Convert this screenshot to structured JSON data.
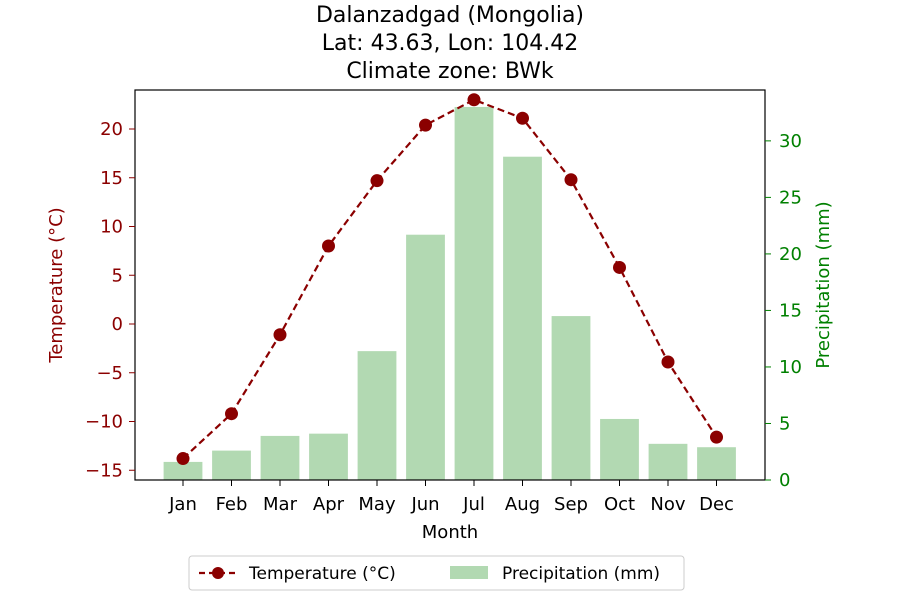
{
  "chart_data": {
    "type": "bar+line",
    "title_lines": [
      "Dalanzadgad (Mongolia)",
      "Lat: 43.63, Lon: 104.42",
      "Climate zone: BWk"
    ],
    "xlabel": "Month",
    "categories": [
      "Jan",
      "Feb",
      "Mar",
      "Apr",
      "May",
      "Jun",
      "Jul",
      "Aug",
      "Sep",
      "Oct",
      "Nov",
      "Dec"
    ],
    "series": [
      {
        "name": "Temperature (°C)",
        "kind": "line",
        "axis": "left",
        "color": "#8b0000",
        "style": "dashed-with-circle-markers",
        "values": [
          -13.8,
          -9.2,
          -1.1,
          8.0,
          14.7,
          20.4,
          23.0,
          21.1,
          14.8,
          5.8,
          -3.9,
          -11.6
        ]
      },
      {
        "name": "Precipitation (mm)",
        "kind": "bar",
        "axis": "right",
        "color": "#b2d9b2",
        "values": [
          1.6,
          2.6,
          3.9,
          4.1,
          11.4,
          21.7,
          33.0,
          28.6,
          14.5,
          5.4,
          3.2,
          2.9
        ]
      }
    ],
    "y_left": {
      "label": "Temperature (°C)",
      "color": "#8b0000",
      "ylim": [
        -16,
        24
      ],
      "ticks": [
        -15,
        -10,
        -5,
        0,
        5,
        10,
        15,
        20
      ],
      "tick_labels": [
        "−15",
        "−10",
        "−5",
        "0",
        "5",
        "10",
        "15",
        "20"
      ]
    },
    "y_right": {
      "label": "Precipitation (mm)",
      "color": "#008000",
      "ylim": [
        0,
        34.5
      ],
      "ticks": [
        0,
        5,
        10,
        15,
        20,
        25,
        30
      ],
      "tick_labels": [
        "0",
        "5",
        "10",
        "15",
        "20",
        "25",
        "30"
      ]
    },
    "grid": false,
    "legend": {
      "position": "bottom-center",
      "entries": [
        "Temperature (°C)",
        "Precipitation (mm)"
      ]
    }
  }
}
